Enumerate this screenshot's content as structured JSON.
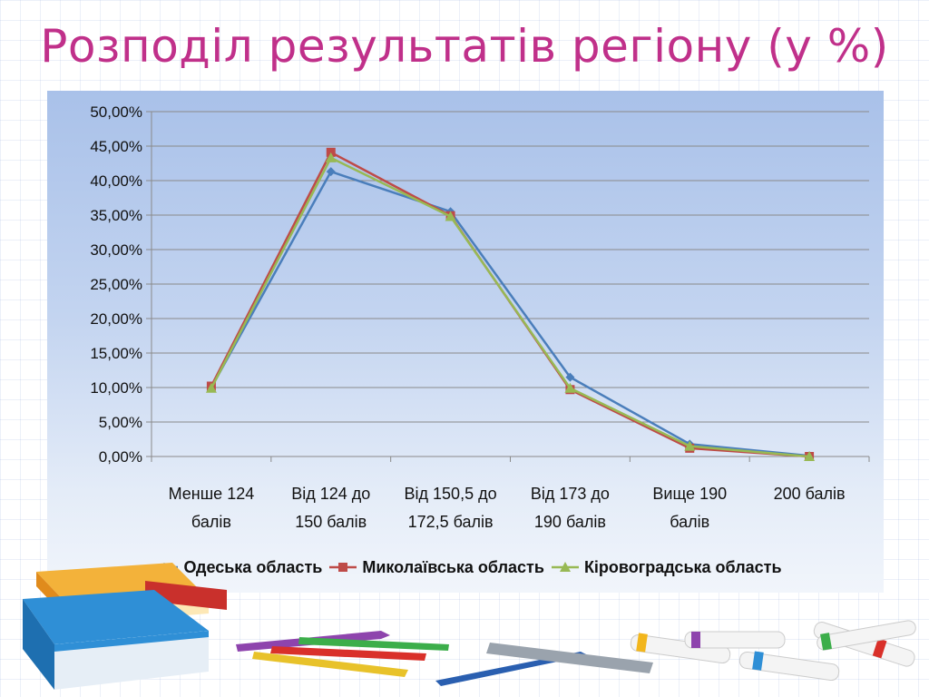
{
  "slide": {
    "title": "Розподіл результатів регіону (у %)"
  },
  "chart_data": {
    "type": "line",
    "title": "",
    "xlabel": "",
    "ylabel": "",
    "ylim": [
      0,
      0.5
    ],
    "y_ticks": [
      0,
      0.05,
      0.1,
      0.15,
      0.2,
      0.25,
      0.3,
      0.35,
      0.4,
      0.45,
      0.5
    ],
    "y_tick_labels": [
      "0,00%",
      "5,00%",
      "10,00%",
      "15,00%",
      "20,00%",
      "25,00%",
      "30,00%",
      "35,00%",
      "40,00%",
      "45,00%",
      "50,00%"
    ],
    "grid": true,
    "legend_position": "bottom",
    "categories": [
      [
        "Менше 124",
        "балів"
      ],
      [
        "Від 124 до",
        "150 балів"
      ],
      [
        "Від 150,5 до",
        "172,5 балів"
      ],
      [
        "Від 173 до",
        "190 балів"
      ],
      [
        "Вище 190",
        "балів"
      ],
      [
        "200 балів"
      ]
    ],
    "series": [
      {
        "name": "Одеська область",
        "color": "#4a7ebb",
        "marker": "diamond",
        "values": [
          0.1,
          0.413,
          0.355,
          0.115,
          0.018,
          0.001
        ]
      },
      {
        "name": "Миколаївська область",
        "color": "#be4b48",
        "marker": "square",
        "values": [
          0.102,
          0.441,
          0.349,
          0.097,
          0.012,
          0.0
        ]
      },
      {
        "name": "Кіровоградська область",
        "color": "#98b954",
        "marker": "triangle",
        "values": [
          0.099,
          0.433,
          0.348,
          0.099,
          0.015,
          0.0
        ]
      }
    ]
  }
}
